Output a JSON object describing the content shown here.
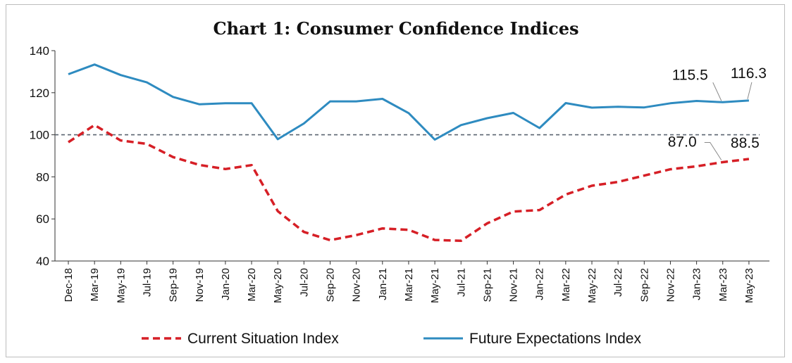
{
  "chart_data": {
    "type": "line",
    "title": "Chart 1: Consumer Confidence Indices",
    "xlabel": "",
    "ylabel": "",
    "ylim": [
      40,
      140
    ],
    "yticks": [
      40,
      60,
      80,
      100,
      120,
      140
    ],
    "reference_line": 100,
    "categories": [
      "Dec-18",
      "Mar-19",
      "May-19",
      "Jul-19",
      "Sep-19",
      "Nov-19",
      "Jan-20",
      "Mar-20",
      "May-20",
      "Jul-20",
      "Sep-20",
      "Nov-20",
      "Jan-21",
      "Mar-21",
      "May-21",
      "Jul-21",
      "Sep-21",
      "Nov-21",
      "Jan-22",
      "Mar-22",
      "May-22",
      "Jul-22",
      "Sep-22",
      "Nov-22",
      "Jan-23",
      "Mar-23",
      "May-23"
    ],
    "series": [
      {
        "name": "Current Situation Index",
        "color": "#d61f26",
        "style": "dashed",
        "values": [
          96.5,
          104.6,
          97.3,
          95.7,
          89.4,
          85.7,
          83.7,
          85.6,
          63.7,
          53.8,
          49.9,
          52.3,
          55.5,
          54.8,
          50.0,
          49.6,
          57.9,
          63.5,
          64.2,
          71.6,
          75.8,
          77.6,
          80.6,
          83.6,
          85.0,
          87.0,
          88.5
        ]
      },
      {
        "name": "Future Expectations Index",
        "color": "#2e8bc0",
        "style": "solid",
        "values": [
          128.8,
          133.4,
          128.4,
          124.9,
          118.0,
          114.5,
          115.0,
          115.0,
          97.9,
          105.4,
          115.9,
          115.9,
          117.1,
          110.3,
          97.7,
          104.6,
          107.9,
          110.4,
          103.2,
          115.1,
          112.9,
          113.3,
          113.0,
          115.0,
          116.1,
          115.5,
          116.3
        ]
      }
    ],
    "annotations": [
      {
        "series": "Future Expectations Index",
        "category": "Mar-23",
        "text": "115.5"
      },
      {
        "series": "Future Expectations Index",
        "category": "May-23",
        "text": "116.3"
      },
      {
        "series": "Current Situation Index",
        "category": "Mar-23",
        "text": "87.0"
      },
      {
        "series": "Current Situation Index",
        "category": "May-23",
        "text": "88.5"
      }
    ],
    "grid": false,
    "legend_position": "bottom"
  }
}
